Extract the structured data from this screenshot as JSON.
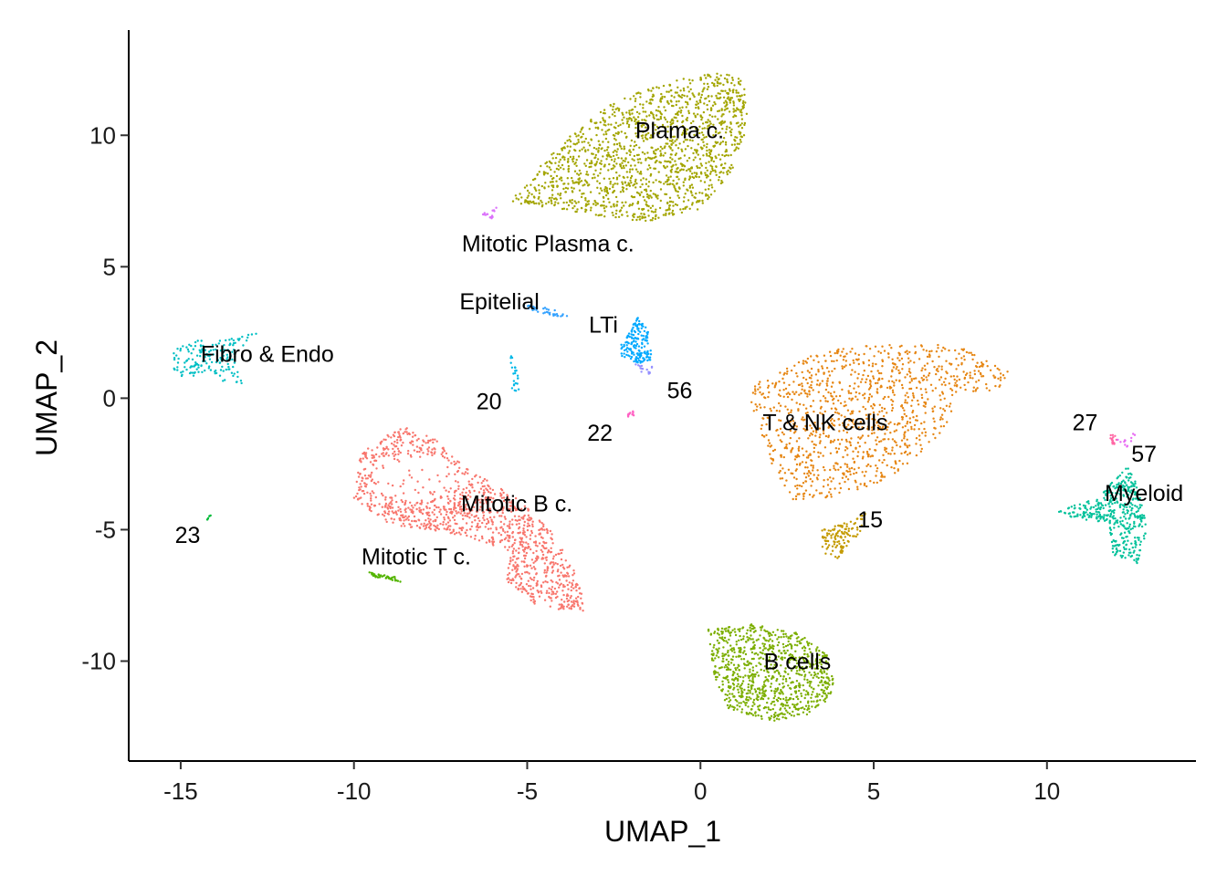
{
  "chart_data": {
    "type": "scatter",
    "title": "",
    "xlabel": "UMAP_1",
    "ylabel": "UMAP_2",
    "xlim": [
      -16.5,
      14.3
    ],
    "ylim": [
      -13.8,
      14.0
    ],
    "x_ticks": [
      -15,
      -10,
      -5,
      0,
      5,
      10
    ],
    "y_ticks": [
      -10,
      -5,
      0,
      5,
      10
    ],
    "grid": false,
    "legend": "none",
    "clusters": [
      {
        "name": "Plama c.",
        "color": "#A3A500",
        "label_x": -0.6,
        "label_y": 10.2,
        "shape": {
          "type": "poly",
          "points": [
            [
              -5.5,
              7.5
            ],
            [
              -4.5,
              9.0
            ],
            [
              -3.6,
              10.2
            ],
            [
              -2.5,
              11.3
            ],
            [
              -1.0,
              12.0
            ],
            [
              0.7,
              12.5
            ],
            [
              1.3,
              12.0
            ],
            [
              1.4,
              10.5
            ],
            [
              0.9,
              8.6
            ],
            [
              0.0,
              7.2
            ],
            [
              -1.6,
              6.7
            ],
            [
              -3.3,
              7.0
            ],
            [
              -5.2,
              7.4
            ]
          ]
        },
        "n": 1500
      },
      {
        "name": "B cells",
        "color": "#7CAE00",
        "label_x": 2.8,
        "label_y": -10.0,
        "shape": {
          "type": "poly",
          "points": [
            [
              0.2,
              -8.8
            ],
            [
              1.5,
              -8.6
            ],
            [
              2.8,
              -8.9
            ],
            [
              3.7,
              -9.8
            ],
            [
              3.9,
              -11.2
            ],
            [
              3.2,
              -12.0
            ],
            [
              2.0,
              -12.3
            ],
            [
              0.8,
              -11.8
            ],
            [
              0.4,
              -10.6
            ],
            [
              0.3,
              -9.6
            ]
          ]
        },
        "n": 900
      },
      {
        "name": "T & NK cells",
        "color": "#E68613",
        "label_x": 3.6,
        "label_y": -0.9,
        "shape": {
          "type": "poly",
          "points": [
            [
              1.5,
              0.5
            ],
            [
              3.5,
              1.8
            ],
            [
              5.5,
              2.1
            ],
            [
              7.5,
              2.0
            ],
            [
              8.9,
              1.0
            ],
            [
              8.8,
              0.4
            ],
            [
              7.5,
              0.1
            ],
            [
              6.9,
              -1.5
            ],
            [
              6.0,
              -2.6
            ],
            [
              5.0,
              -3.3
            ],
            [
              3.7,
              -3.8
            ],
            [
              2.5,
              -3.9
            ],
            [
              2.2,
              -3.0
            ],
            [
              1.7,
              -1.2
            ],
            [
              1.4,
              -0.3
            ]
          ]
        },
        "n": 1100
      },
      {
        "name": "Mitotic B c.",
        "color": "#F8766D",
        "label_x": -5.3,
        "label_y": -4.0,
        "shape": {
          "type": "ring",
          "points": [
            [
              -8.5,
              -1.0
            ],
            [
              -9.8,
              -2.0
            ],
            [
              -10.0,
              -3.8
            ],
            [
              -9.0,
              -4.8
            ],
            [
              -7.0,
              -5.2
            ],
            [
              -5.5,
              -5.8
            ],
            [
              -5.6,
              -7.0
            ],
            [
              -4.6,
              -8.0
            ],
            [
              -3.3,
              -8.1
            ],
            [
              -3.6,
              -6.6
            ],
            [
              -4.3,
              -5.0
            ],
            [
              -5.3,
              -3.8
            ],
            [
              -6.8,
              -2.6
            ],
            [
              -7.8,
              -1.4
            ]
          ]
        },
        "n": 1200
      },
      {
        "name": "Myeloid",
        "color": "#00C19A",
        "label_x": 12.8,
        "label_y": -3.6,
        "shape": {
          "type": "poly",
          "points": [
            [
              10.2,
              -4.3
            ],
            [
              11.5,
              -3.8
            ],
            [
              12.3,
              -2.5
            ],
            [
              12.6,
              -3.3
            ],
            [
              12.9,
              -5.0
            ],
            [
              12.6,
              -6.3
            ],
            [
              11.9,
              -6.0
            ],
            [
              11.8,
              -4.8
            ],
            [
              10.9,
              -4.6
            ]
          ]
        },
        "n": 400
      },
      {
        "name": "Fibro & Endo",
        "color": "#00BFC4",
        "label_x": -12.5,
        "label_y": 1.7,
        "shape": {
          "type": "poly",
          "points": [
            [
              -15.2,
              1.9
            ],
            [
              -14.6,
              2.2
            ],
            [
              -13.8,
              2.2
            ],
            [
              -12.6,
              2.6
            ],
            [
              -13.4,
              1.8
            ],
            [
              -13.2,
              0.3
            ],
            [
              -14.2,
              0.9
            ],
            [
              -15.2,
              0.8
            ]
          ]
        },
        "n": 170
      },
      {
        "name": "LTi",
        "color": "#00A9FF",
        "label_x": -2.8,
        "label_y": 2.8,
        "shape": {
          "type": "poly",
          "points": [
            [
              -2.3,
              2.0
            ],
            [
              -1.8,
              3.1
            ],
            [
              -1.5,
              2.6
            ],
            [
              -1.4,
              1.4
            ],
            [
              -1.8,
              1.3
            ],
            [
              -2.3,
              1.6
            ]
          ]
        },
        "n": 170
      },
      {
        "name": "Epitelial",
        "color": "#35A2FF",
        "label_x": -5.8,
        "label_y": 3.7,
        "shape": {
          "type": "poly",
          "points": [
            [
              -5.2,
              3.6
            ],
            [
              -4.3,
              3.4
            ],
            [
              -3.8,
              3.1
            ],
            [
              -4.2,
              3.1
            ],
            [
              -5.0,
              3.4
            ]
          ]
        },
        "n": 40
      },
      {
        "name": "Mitotic Plasma c.",
        "color": "#DB72FB",
        "label_x": -4.4,
        "label_y": 5.9,
        "shape": {
          "type": "poly",
          "points": [
            [
              -6.3,
              7.0
            ],
            [
              -5.8,
              7.3
            ],
            [
              -6.0,
              6.8
            ]
          ]
        },
        "n": 15
      },
      {
        "name": "Mitotic T c.",
        "color": "#53B400",
        "label_x": -8.2,
        "label_y": -6.0,
        "shape": {
          "type": "poly",
          "points": [
            [
              -9.6,
              -6.6
            ],
            [
              -8.8,
              -6.8
            ],
            [
              -8.6,
              -7.0
            ],
            [
              -9.4,
              -6.8
            ]
          ]
        },
        "n": 40
      },
      {
        "name": "15",
        "color": "#C49A00",
        "label_x": 4.9,
        "label_y": -4.6,
        "shape": {
          "type": "poly",
          "points": [
            [
              3.5,
              -5.0
            ],
            [
              4.3,
              -4.7
            ],
            [
              4.8,
              -4.3
            ],
            [
              4.6,
              -5.1
            ],
            [
              3.9,
              -6.2
            ],
            [
              3.5,
              -5.8
            ]
          ]
        },
        "n": 120
      },
      {
        "name": "20",
        "color": "#00B8E7",
        "label_x": -6.1,
        "label_y": -0.1,
        "shape": {
          "type": "poly",
          "points": [
            [
              -5.5,
              1.6
            ],
            [
              -5.3,
              1.6
            ],
            [
              -5.2,
              0.2
            ],
            [
              -5.5,
              0.3
            ]
          ]
        },
        "n": 25
      },
      {
        "name": "22",
        "color": "#FF61C3",
        "label_x": -2.9,
        "label_y": -1.3,
        "shape": {
          "type": "poly",
          "points": [
            [
              -2.1,
              -0.5
            ],
            [
              -1.9,
              -0.5
            ],
            [
              -1.9,
              -0.7
            ],
            [
              -2.1,
              -0.7
            ]
          ]
        },
        "n": 12
      },
      {
        "name": "23",
        "color": "#00BA38",
        "label_x": -14.8,
        "label_y": -5.2,
        "shape": {
          "type": "poly",
          "points": [
            [
              -14.3,
              -4.5
            ],
            [
              -14.1,
              -4.4
            ],
            [
              -14.2,
              -4.7
            ]
          ]
        },
        "n": 6
      },
      {
        "name": "27",
        "color": "#FF67A4",
        "label_x": 11.1,
        "label_y": -0.9,
        "shape": {
          "type": "poly",
          "points": [
            [
              11.8,
              -1.4
            ],
            [
              12.1,
              -1.4
            ],
            [
              12.0,
              -1.8
            ],
            [
              11.9,
              -1.8
            ]
          ]
        },
        "n": 15
      },
      {
        "name": "56",
        "color": "#9590FF",
        "label_x": -0.6,
        "label_y": 0.3,
        "shape": {
          "type": "poly",
          "points": [
            [
              -1.9,
              1.3
            ],
            [
              -1.4,
              1.2
            ],
            [
              -1.3,
              0.9
            ],
            [
              -1.7,
              0.9
            ]
          ]
        },
        "n": 15
      },
      {
        "name": "57",
        "color": "#E76BF3",
        "label_x": 12.8,
        "label_y": -2.1,
        "shape": {
          "type": "poly",
          "points": [
            [
              12.0,
              -1.6
            ],
            [
              12.6,
              -1.3
            ],
            [
              12.3,
              -1.9
            ]
          ]
        },
        "n": 12
      }
    ]
  }
}
